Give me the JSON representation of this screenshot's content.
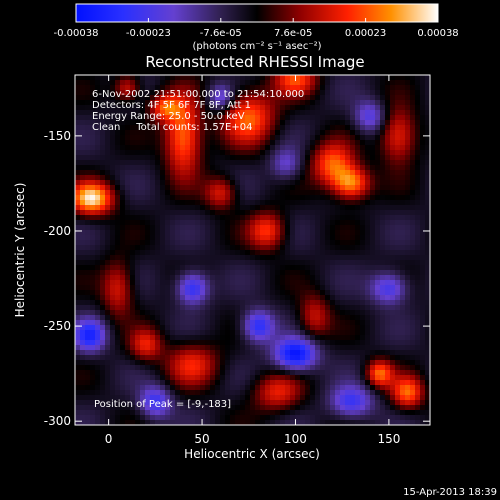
{
  "chart_data": {
    "type": "heatmap",
    "title": "Reconstructed RHESSI Image",
    "colorbar": {
      "ticks": [
        "-0.00038",
        "-0.00023",
        "-7.6e-05",
        "7.6e-05",
        "0.00023",
        "0.00038"
      ],
      "range": [
        -0.00038,
        0.00038
      ],
      "unit_label": "(photons cm⁻² s⁻¹ asec⁻²)"
    },
    "annotations": [
      "6-Nov-2002 21:51:00.000 to 21:54:10.000",
      "Detectors: 4F 5F 6F 7F 8F, Att 1",
      "Energy Range: 25.0 - 50.0 keV",
      "Clean     Total counts: 1.57E+04"
    ],
    "peak_label": "Position of Peak = [-9,-183]",
    "peak_position": [
      -9,
      -183
    ],
    "xlabel": "Heliocentric X (arcsec)",
    "ylabel": "Heliocentric Y (arcsec)",
    "xlim": [
      -18,
      172
    ],
    "ylim": [
      -302,
      -118
    ],
    "xticks": [
      "0",
      "50",
      "100",
      "150"
    ],
    "yticks": [
      "-150",
      "-200",
      "-250",
      "-300"
    ],
    "grid": false,
    "features": [
      {
        "x": -9,
        "y": -183,
        "sx": 8,
        "sy": 6,
        "amp": 1.0
      },
      {
        "x": 40,
        "y": -150,
        "sx": 7,
        "sy": 14,
        "amp": 0.8
      },
      {
        "x": 75,
        "y": -140,
        "sx": 10,
        "sy": 10,
        "amp": 0.7
      },
      {
        "x": 120,
        "y": -165,
        "sx": 8,
        "sy": 8,
        "amp": 0.7
      },
      {
        "x": 130,
        "y": -175,
        "sx": 7,
        "sy": 6,
        "amp": 0.8
      },
      {
        "x": 155,
        "y": -150,
        "sx": 7,
        "sy": 10,
        "amp": 0.6
      },
      {
        "x": 30,
        "y": -135,
        "sx": 6,
        "sy": 5,
        "amp": 0.6
      },
      {
        "x": 160,
        "y": -285,
        "sx": 6,
        "sy": 6,
        "amp": 0.7
      },
      {
        "x": 145,
        "y": -275,
        "sx": 5,
        "sy": 5,
        "amp": 0.7
      },
      {
        "x": 85,
        "y": -200,
        "sx": 7,
        "sy": 7,
        "amp": 0.6
      },
      {
        "x": 45,
        "y": -270,
        "sx": 10,
        "sy": 8,
        "amp": 0.5
      },
      {
        "x": 90,
        "y": -285,
        "sx": 9,
        "sy": 7,
        "amp": 0.5
      },
      {
        "x": 5,
        "y": -230,
        "sx": 6,
        "sy": 10,
        "amp": 0.5
      },
      {
        "x": 20,
        "y": -260,
        "sx": 6,
        "sy": 6,
        "amp": 0.5
      },
      {
        "x": 110,
        "y": -245,
        "sx": 6,
        "sy": 8,
        "amp": 0.45
      },
      {
        "x": 60,
        "y": -180,
        "sx": 6,
        "sy": 6,
        "amp": 0.5
      },
      {
        "x": 100,
        "y": -120,
        "sx": 8,
        "sy": 6,
        "amp": 0.6
      },
      {
        "x": 10,
        "y": -125,
        "sx": 5,
        "sy": 5,
        "amp": 0.5
      },
      {
        "x": 100,
        "y": -265,
        "sx": 8,
        "sy": 6,
        "amp": -0.9
      },
      {
        "x": 80,
        "y": -250,
        "sx": 6,
        "sy": 6,
        "amp": -0.7
      },
      {
        "x": 45,
        "y": -230,
        "sx": 6,
        "sy": 6,
        "amp": -0.7
      },
      {
        "x": -10,
        "y": -255,
        "sx": 6,
        "sy": 6,
        "amp": -0.7
      },
      {
        "x": 150,
        "y": -230,
        "sx": 7,
        "sy": 6,
        "amp": -0.6
      },
      {
        "x": 25,
        "y": -290,
        "sx": 6,
        "sy": 6,
        "amp": -0.6
      },
      {
        "x": 130,
        "y": -290,
        "sx": 8,
        "sy": 6,
        "amp": -0.6
      },
      {
        "x": 140,
        "y": -140,
        "sx": 6,
        "sy": 6,
        "amp": -0.5
      },
      {
        "x": 60,
        "y": -130,
        "sx": 5,
        "sy": 5,
        "amp": -0.5
      },
      {
        "x": 95,
        "y": -165,
        "sx": 6,
        "sy": 6,
        "amp": -0.4
      }
    ]
  },
  "footer": {
    "date": "15-Apr-2013 18:39"
  }
}
